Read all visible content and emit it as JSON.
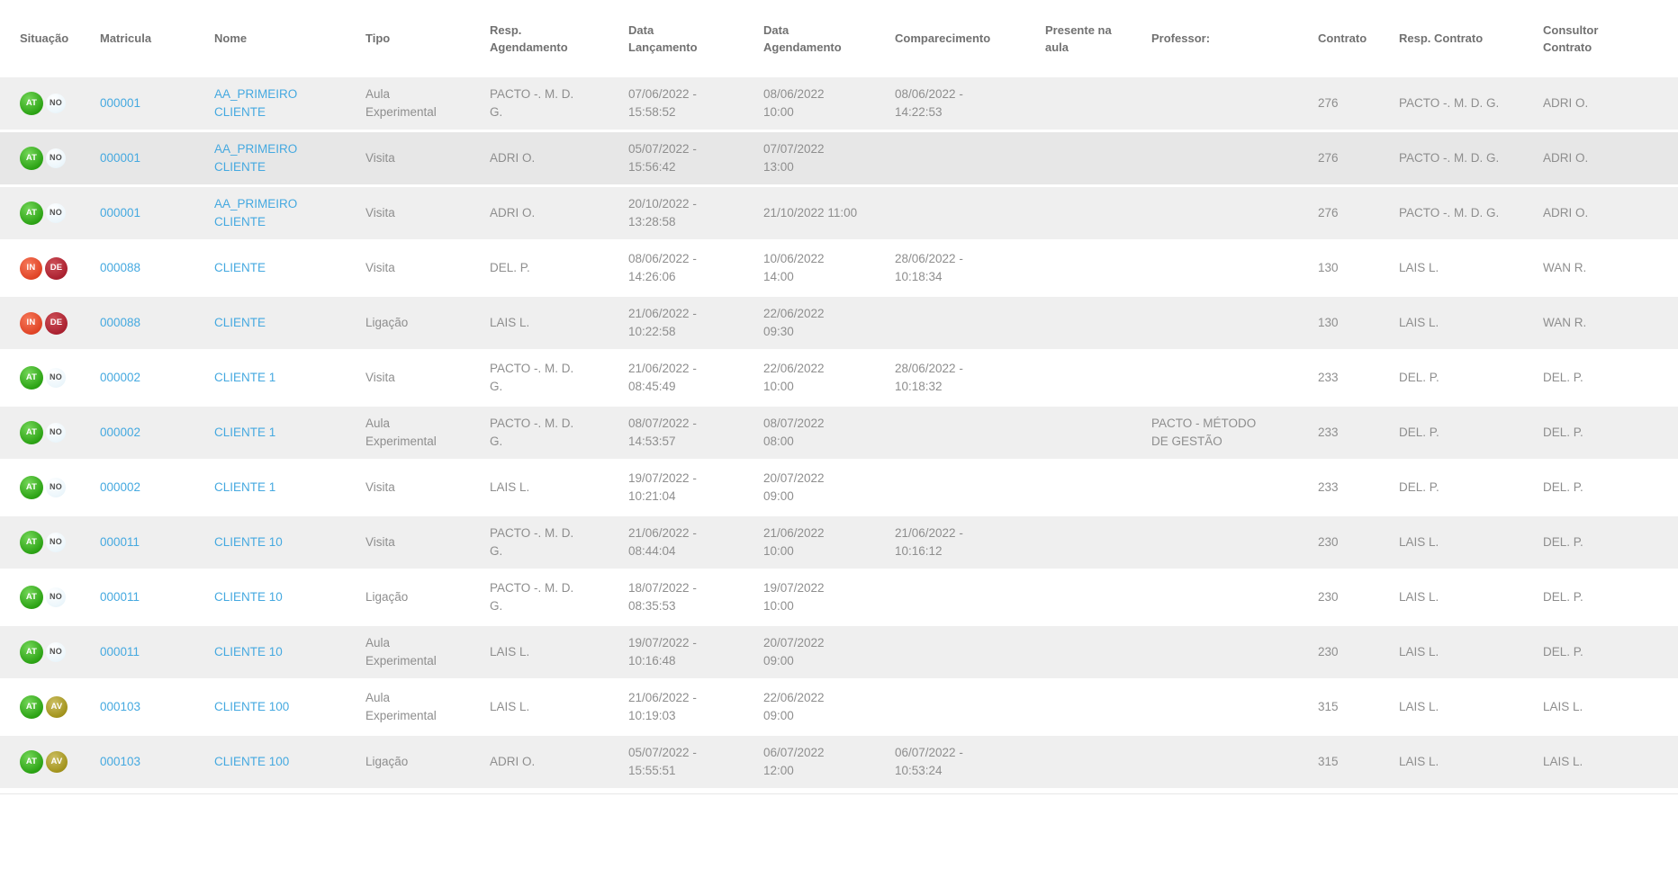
{
  "table": {
    "link_color": "#45a9e0",
    "stripe_colors": {
      "gray": "#efefef",
      "gray_dark": "#e7e7e7",
      "white": "#ffffff"
    },
    "badge_colors": {
      "at": {
        "bg": "#2ca315",
        "text": "#ffffff"
      },
      "no": {
        "bg": "#ecf6fb",
        "text": "#4f4f4f"
      },
      "in": {
        "bg": "#e04426",
        "text": "#ffffff"
      },
      "de": {
        "bg": "#aa2130",
        "text": "#ffffff"
      },
      "av": {
        "bg": "#a2931c",
        "text": "#ffffff"
      }
    },
    "columns": [
      {
        "key": "situacao",
        "label": "Situação"
      },
      {
        "key": "matricula",
        "label": "Matricula"
      },
      {
        "key": "nome",
        "label": "Nome"
      },
      {
        "key": "tipo",
        "label": "Tipo"
      },
      {
        "key": "resp_agendamento",
        "label": "Resp.\nAgendamento"
      },
      {
        "key": "data_lancamento",
        "label": "Data\nLançamento"
      },
      {
        "key": "data_agendamento",
        "label": "Data\nAgendamento"
      },
      {
        "key": "comparecimento",
        "label": "Comparecimento"
      },
      {
        "key": "presente_na_aula",
        "label": "Presente na\naula"
      },
      {
        "key": "professor",
        "label": "Professor:"
      },
      {
        "key": "contrato",
        "label": "Contrato"
      },
      {
        "key": "resp_contrato",
        "label": "Resp. Contrato"
      },
      {
        "key": "consultor_contrato",
        "label": "Consultor\nContrato"
      }
    ],
    "rows": [
      {
        "shade": "gray",
        "situacao": [
          {
            "code": "AT",
            "variant": "at"
          },
          {
            "code": "NO",
            "variant": "no"
          }
        ],
        "matricula": "000001",
        "nome": "AA_PRIMEIRO\nCLIENTE",
        "tipo": "Aula\nExperimental",
        "resp_agendamento": "PACTO -. M. D.\nG.",
        "data_lancamento": "07/06/2022 -\n15:58:52",
        "data_agendamento": "08/06/2022\n10:00",
        "comparecimento": "08/06/2022 -\n14:22:53",
        "presente_na_aula": "",
        "professor": "",
        "contrato": "276",
        "resp_contrato": "PACTO -. M. D. G.",
        "consultor_contrato": "ADRI O."
      },
      {
        "shade": "gray-dark",
        "situacao": [
          {
            "code": "AT",
            "variant": "at"
          },
          {
            "code": "NO",
            "variant": "no"
          }
        ],
        "matricula": "000001",
        "nome": "AA_PRIMEIRO\nCLIENTE",
        "tipo": "Visita",
        "resp_agendamento": "ADRI O.",
        "data_lancamento": "05/07/2022 -\n15:56:42",
        "data_agendamento": "07/07/2022\n13:00",
        "comparecimento": "",
        "presente_na_aula": "",
        "professor": "",
        "contrato": "276",
        "resp_contrato": "PACTO -. M. D. G.",
        "consultor_contrato": "ADRI O."
      },
      {
        "shade": "gray",
        "situacao": [
          {
            "code": "AT",
            "variant": "at"
          },
          {
            "code": "NO",
            "variant": "no"
          }
        ],
        "matricula": "000001",
        "nome": "AA_PRIMEIRO\nCLIENTE",
        "tipo": "Visita",
        "resp_agendamento": "ADRI O.",
        "data_lancamento": "20/10/2022 -\n13:28:58",
        "data_agendamento": "21/10/2022 11:00",
        "comparecimento": "",
        "presente_na_aula": "",
        "professor": "",
        "contrato": "276",
        "resp_contrato": "PACTO -. M. D. G.",
        "consultor_contrato": "ADRI O."
      },
      {
        "shade": "white",
        "situacao": [
          {
            "code": "IN",
            "variant": "in"
          },
          {
            "code": "DE",
            "variant": "de"
          }
        ],
        "matricula": "000088",
        "nome": "CLIENTE",
        "tipo": "Visita",
        "resp_agendamento": "DEL. P.",
        "data_lancamento": "08/06/2022 -\n14:26:06",
        "data_agendamento": "10/06/2022\n14:00",
        "comparecimento": "28/06/2022 -\n10:18:34",
        "presente_na_aula": "",
        "professor": "",
        "contrato": "130",
        "resp_contrato": "LAIS L.",
        "consultor_contrato": "WAN R."
      },
      {
        "shade": "gray",
        "situacao": [
          {
            "code": "IN",
            "variant": "in"
          },
          {
            "code": "DE",
            "variant": "de"
          }
        ],
        "matricula": "000088",
        "nome": "CLIENTE",
        "tipo": "Ligação",
        "resp_agendamento": "LAIS L.",
        "data_lancamento": "21/06/2022 -\n10:22:58",
        "data_agendamento": "22/06/2022\n09:30",
        "comparecimento": "",
        "presente_na_aula": "",
        "professor": "",
        "contrato": "130",
        "resp_contrato": "LAIS L.",
        "consultor_contrato": "WAN R."
      },
      {
        "shade": "white",
        "situacao": [
          {
            "code": "AT",
            "variant": "at"
          },
          {
            "code": "NO",
            "variant": "no"
          }
        ],
        "matricula": "000002",
        "nome": "CLIENTE 1",
        "tipo": "Visita",
        "resp_agendamento": "PACTO -. M. D.\nG.",
        "data_lancamento": "21/06/2022 -\n08:45:49",
        "data_agendamento": "22/06/2022\n10:00",
        "comparecimento": "28/06/2022 -\n10:18:32",
        "presente_na_aula": "",
        "professor": "",
        "contrato": "233",
        "resp_contrato": "DEL. P.",
        "consultor_contrato": "DEL. P."
      },
      {
        "shade": "gray",
        "situacao": [
          {
            "code": "AT",
            "variant": "at"
          },
          {
            "code": "NO",
            "variant": "no"
          }
        ],
        "matricula": "000002",
        "nome": "CLIENTE 1",
        "tipo": "Aula\nExperimental",
        "resp_agendamento": "PACTO -. M. D.\nG.",
        "data_lancamento": "08/07/2022 -\n14:53:57",
        "data_agendamento": "08/07/2022\n08:00",
        "comparecimento": "",
        "presente_na_aula": "",
        "professor": "PACTO - MÉTODO\nDE GESTÃO",
        "contrato": "233",
        "resp_contrato": "DEL. P.",
        "consultor_contrato": "DEL. P."
      },
      {
        "shade": "white",
        "situacao": [
          {
            "code": "AT",
            "variant": "at"
          },
          {
            "code": "NO",
            "variant": "no"
          }
        ],
        "matricula": "000002",
        "nome": "CLIENTE 1",
        "tipo": "Visita",
        "resp_agendamento": "LAIS L.",
        "data_lancamento": "19/07/2022 -\n10:21:04",
        "data_agendamento": "20/07/2022\n09:00",
        "comparecimento": "",
        "presente_na_aula": "",
        "professor": "",
        "contrato": "233",
        "resp_contrato": "DEL. P.",
        "consultor_contrato": "DEL. P."
      },
      {
        "shade": "gray",
        "situacao": [
          {
            "code": "AT",
            "variant": "at"
          },
          {
            "code": "NO",
            "variant": "no"
          }
        ],
        "matricula": "000011",
        "nome": "CLIENTE 10",
        "tipo": "Visita",
        "resp_agendamento": "PACTO -. M. D.\nG.",
        "data_lancamento": "21/06/2022 -\n08:44:04",
        "data_agendamento": "21/06/2022\n10:00",
        "comparecimento": "21/06/2022 -\n10:16:12",
        "presente_na_aula": "",
        "professor": "",
        "contrato": "230",
        "resp_contrato": "LAIS L.",
        "consultor_contrato": "DEL. P."
      },
      {
        "shade": "white",
        "situacao": [
          {
            "code": "AT",
            "variant": "at"
          },
          {
            "code": "NO",
            "variant": "no"
          }
        ],
        "matricula": "000011",
        "nome": "CLIENTE 10",
        "tipo": "Ligação",
        "resp_agendamento": "PACTO -. M. D.\nG.",
        "data_lancamento": "18/07/2022 -\n08:35:53",
        "data_agendamento": "19/07/2022\n10:00",
        "comparecimento": "",
        "presente_na_aula": "",
        "professor": "",
        "contrato": "230",
        "resp_contrato": "LAIS L.",
        "consultor_contrato": "DEL. P."
      },
      {
        "shade": "gray",
        "situacao": [
          {
            "code": "AT",
            "variant": "at"
          },
          {
            "code": "NO",
            "variant": "no"
          }
        ],
        "matricula": "000011",
        "nome": "CLIENTE 10",
        "tipo": "Aula\nExperimental",
        "resp_agendamento": "LAIS L.",
        "data_lancamento": "19/07/2022 -\n10:16:48",
        "data_agendamento": "20/07/2022\n09:00",
        "comparecimento": "",
        "presente_na_aula": "",
        "professor": "",
        "contrato": "230",
        "resp_contrato": "LAIS L.",
        "consultor_contrato": "DEL. P."
      },
      {
        "shade": "white",
        "situacao": [
          {
            "code": "AT",
            "variant": "at"
          },
          {
            "code": "AV",
            "variant": "av"
          }
        ],
        "matricula": "000103",
        "nome": "CLIENTE 100",
        "tipo": "Aula\nExperimental",
        "resp_agendamento": "LAIS L.",
        "data_lancamento": "21/06/2022 -\n10:19:03",
        "data_agendamento": "22/06/2022\n09:00",
        "comparecimento": "",
        "presente_na_aula": "",
        "professor": "",
        "contrato": "315",
        "resp_contrato": "LAIS L.",
        "consultor_contrato": "LAIS L."
      },
      {
        "shade": "gray",
        "situacao": [
          {
            "code": "AT",
            "variant": "at"
          },
          {
            "code": "AV",
            "variant": "av"
          }
        ],
        "matricula": "000103",
        "nome": "CLIENTE 100",
        "tipo": "Ligação",
        "resp_agendamento": "ADRI O.",
        "data_lancamento": "05/07/2022 -\n15:55:51",
        "data_agendamento": "06/07/2022\n12:00",
        "comparecimento": "06/07/2022 -\n10:53:24",
        "presente_na_aula": "",
        "professor": "",
        "contrato": "315",
        "resp_contrato": "LAIS L.",
        "consultor_contrato": "LAIS L."
      }
    ]
  }
}
